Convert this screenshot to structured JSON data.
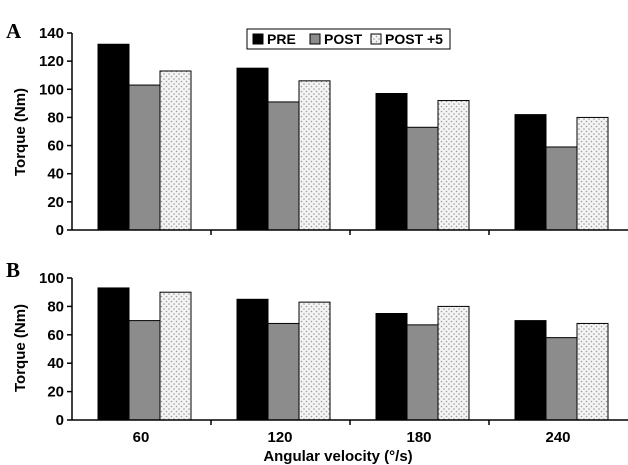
{
  "chart_data": [
    {
      "type": "bar",
      "panel_label": "A",
      "categories": [
        "60",
        "120",
        "180",
        "240"
      ],
      "series": [
        {
          "name": "PRE",
          "values": [
            132,
            115,
            97,
            82
          ]
        },
        {
          "name": "POST",
          "values": [
            103,
            91,
            73,
            59
          ]
        },
        {
          "name": "POST +5",
          "values": [
            113,
            106,
            92,
            80
          ]
        }
      ],
      "ylabel": "Torque (Nm)",
      "xlabel": "",
      "ylim": [
        0,
        140
      ],
      "yticks": [
        "0",
        "20",
        "40",
        "60",
        "80",
        "100",
        "120",
        "140"
      ],
      "legend": "top-center",
      "grid": false
    },
    {
      "type": "bar",
      "panel_label": "B",
      "categories": [
        "60",
        "120",
        "180",
        "240"
      ],
      "series": [
        {
          "name": "PRE",
          "values": [
            93,
            85,
            75,
            70
          ]
        },
        {
          "name": "POST",
          "values": [
            70,
            68,
            67,
            58
          ]
        },
        {
          "name": "POST +5",
          "values": [
            90,
            83,
            80,
            68
          ]
        }
      ],
      "ylabel": "Torque (Nm)",
      "xlabel": "Angular velocity (°/s)",
      "ylim": [
        0,
        100
      ],
      "yticks": [
        "0",
        "20",
        "40",
        "60",
        "80",
        "100"
      ],
      "grid": false
    }
  ],
  "colors": {
    "PRE": "#000000",
    "POST": "#8c8c8c",
    "POST +5": "#f4f4f4",
    "dots": "#9a9a9a"
  }
}
